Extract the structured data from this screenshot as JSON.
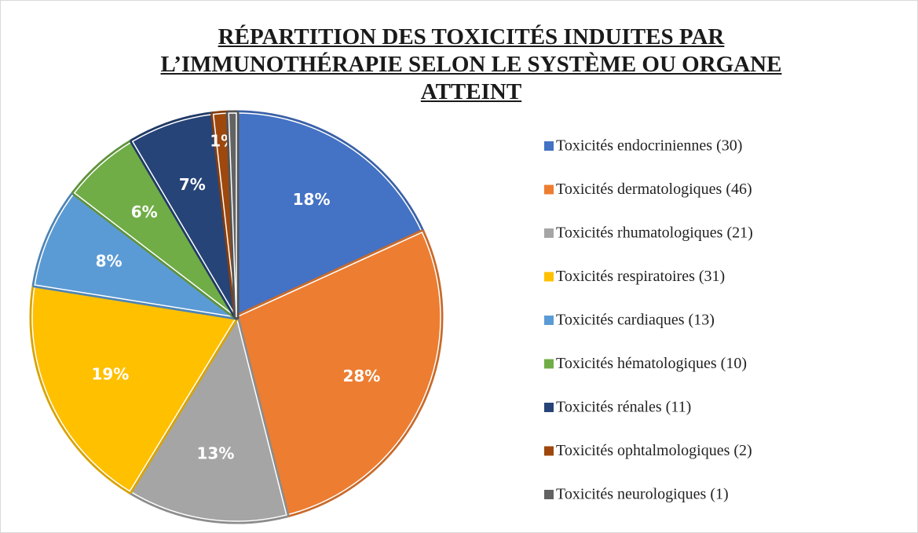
{
  "chart_data": {
    "type": "pie",
    "title": "RÉPARTITION DES TOXICITÉS INDUITES PAR L’IMMUNOTHÉRAPIE SELON LE SYSTÈME OU ORGANE ATTEINT",
    "categories": [
      "Toxicités endocriniennes (30)",
      "Toxicités dermatologiques (46)",
      "Toxicités rhumatologiques (21)",
      "Toxicités respiratoires (31)",
      "Toxicités cardiaques (13)",
      "Toxicités hématologiques (10)",
      "Toxicités rénales (11)",
      "Toxicités ophtalmologiques (2)",
      "Toxicités neurologiques (1)"
    ],
    "values": [
      18.2,
      27.9,
      12.7,
      18.8,
      7.9,
      6.1,
      6.7,
      1.2,
      0.6
    ],
    "value_labels": [
      "18%",
      "28%",
      "13%",
      "19%",
      "8%",
      "6%",
      "7%",
      "1%",
      null
    ],
    "colors": [
      "#4472c4",
      "#ed7d31",
      "#a5a5a5",
      "#ffc000",
      "#5b9bd5",
      "#70ad47",
      "#264478",
      "#9e480e",
      "#636363"
    ],
    "legend": "right"
  }
}
